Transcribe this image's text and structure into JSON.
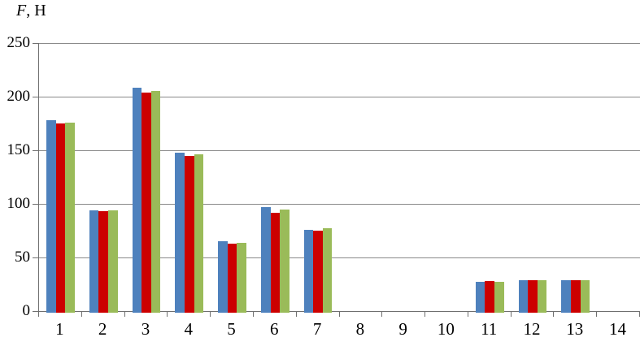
{
  "title": {
    "italic_part": "F",
    "rest_part": ", Н",
    "text": "F, Н"
  },
  "colors": {
    "series_blue": "#4e81bd",
    "series_red": "#cc0000",
    "series_green": "#9abb59",
    "gridline": "#8a8a8a",
    "axis": "#6f6f6f",
    "text": "#000000",
    "background": "#ffffff"
  },
  "chart_data": {
    "type": "bar",
    "title": "F, Н",
    "xlabel": "",
    "ylabel": "F, Н",
    "categories": [
      "1",
      "2",
      "3",
      "4",
      "5",
      "6",
      "7",
      "8",
      "9",
      "10",
      "11",
      "12",
      "13",
      "14"
    ],
    "series": [
      {
        "name": "series-blue",
        "color": "#4e81bd",
        "values": [
          178,
          94,
          208,
          148,
          65,
          97,
          76,
          0,
          0,
          0,
          27,
          29,
          29,
          0
        ]
      },
      {
        "name": "series-red",
        "color": "#cc0000",
        "values": [
          175,
          93,
          204,
          145,
          63,
          92,
          75,
          0,
          0,
          0,
          28,
          29,
          29,
          0
        ]
      },
      {
        "name": "series-green",
        "color": "#9abb59",
        "values": [
          176,
          94,
          205,
          146,
          64,
          95,
          77,
          0,
          0,
          0,
          27,
          29,
          29,
          0
        ]
      }
    ],
    "yticks": [
      0,
      50,
      100,
      150,
      200,
      250
    ],
    "ylim": [
      0,
      250
    ],
    "grid": "horizontal",
    "legend": "none"
  }
}
